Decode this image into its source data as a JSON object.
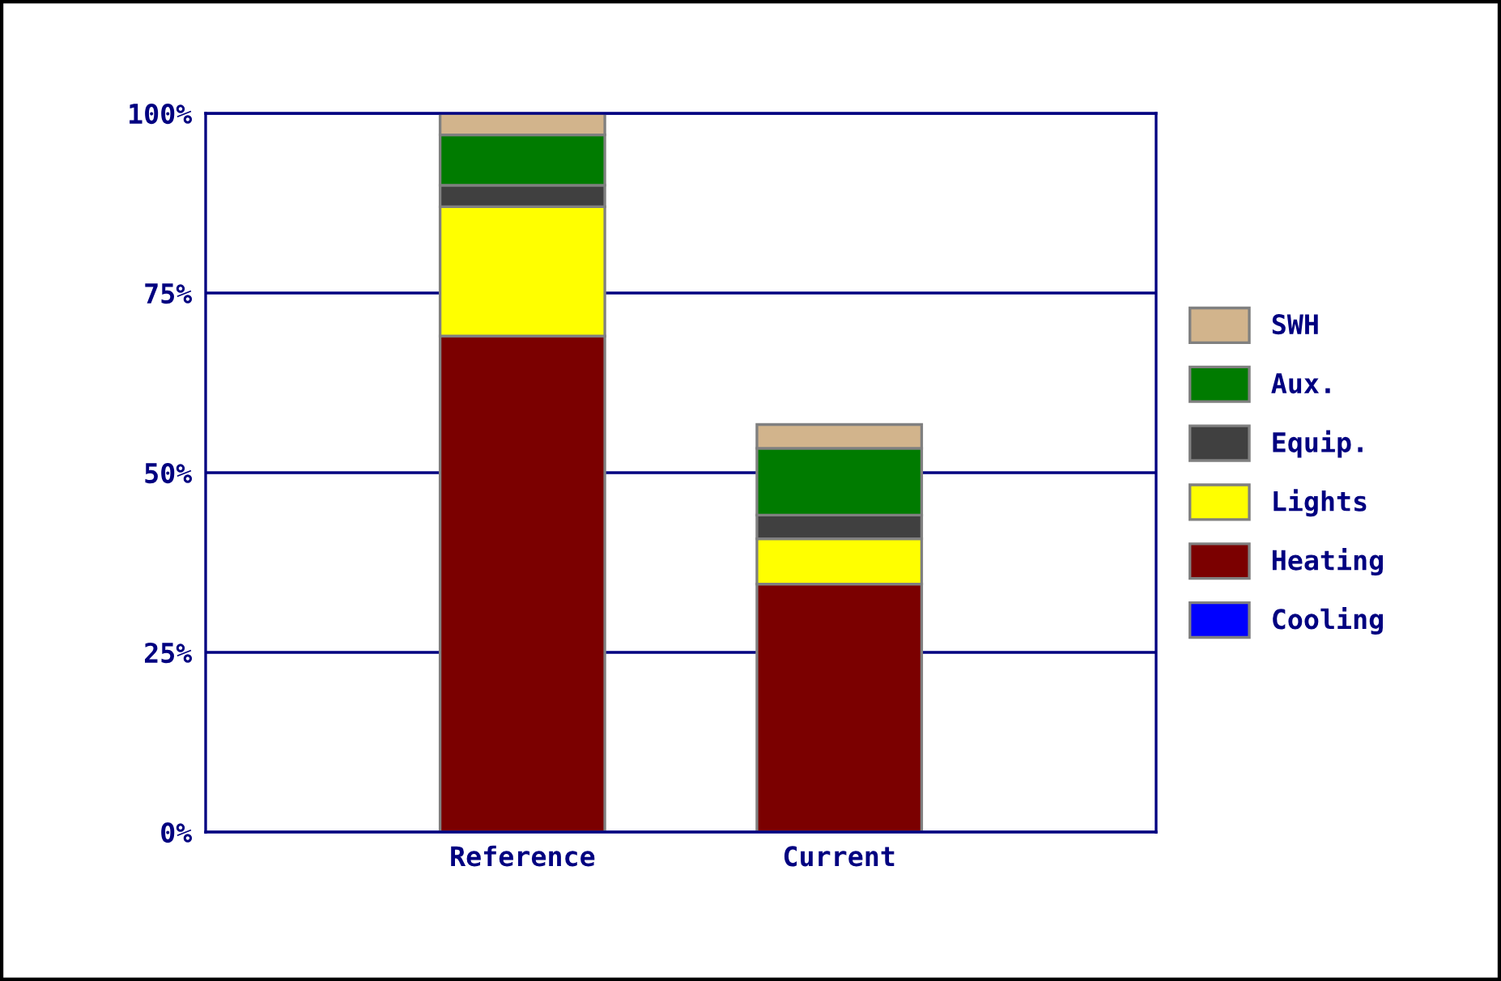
{
  "chart_data": {
    "type": "bar",
    "stacked": true,
    "categories": [
      "Reference",
      "Current"
    ],
    "series": [
      {
        "name": "Cooling",
        "color": "#0000ff",
        "values": [
          0,
          0
        ]
      },
      {
        "name": "Heating",
        "color": "#7b0000",
        "values": [
          69,
          34.5
        ]
      },
      {
        "name": "Lights",
        "color": "#ffff00",
        "values": [
          18,
          6.3
        ]
      },
      {
        "name": "Equip.",
        "color": "#404040",
        "values": [
          3,
          3.3
        ]
      },
      {
        "name": "Aux.",
        "color": "#007b00",
        "values": [
          7,
          9.3
        ]
      },
      {
        "name": "SWH",
        "color": "#d2b48c",
        "values": [
          3,
          3.3
        ]
      }
    ],
    "ylim": [
      0,
      100
    ],
    "yticks": [
      {
        "value": 0,
        "label": "0%"
      },
      {
        "value": 25,
        "label": "25%"
      },
      {
        "value": 50,
        "label": "50%"
      },
      {
        "value": 75,
        "label": "75%"
      },
      {
        "value": 100,
        "label": "100%"
      }
    ],
    "grid": "y",
    "legend": "right"
  }
}
